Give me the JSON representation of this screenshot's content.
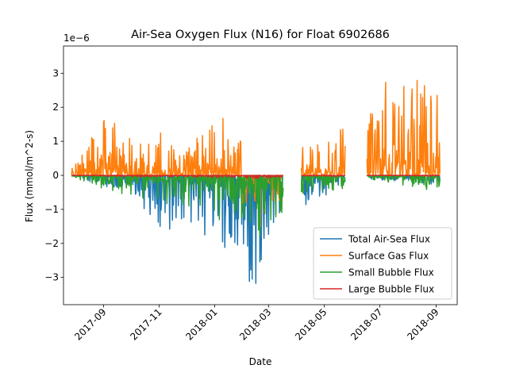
{
  "chart_data": {
    "type": "line",
    "title": "Air-Sea Oxygen Flux (N16) for Float 6902686",
    "xlabel": "Date",
    "ylabel": "Flux (mmol/m^2-s)",
    "y_offset_text": "1e−6",
    "ylim": [
      -3.8,
      3.8
    ],
    "xlim": [
      "2017-07-19",
      "2018-09-24"
    ],
    "y_ticks": [
      -3,
      -2,
      -1,
      0,
      1,
      2,
      3
    ],
    "y_tick_labels": [
      "−3",
      "−2",
      "−1",
      "0",
      "1",
      "2",
      "3"
    ],
    "x_ticks": [
      "2017-09-01",
      "2017-11-01",
      "2018-01-01",
      "2018-03-01",
      "2018-05-01",
      "2018-07-01",
      "2018-09-01"
    ],
    "x_tick_labels": [
      "2017-09",
      "2017-11",
      "2018-01",
      "2018-03",
      "2018-05",
      "2018-07",
      "2018-09"
    ],
    "grid": false,
    "legend_position": "lower-right",
    "segments": [
      {
        "start": "2017-07-28",
        "end": "2018-03-17"
      },
      {
        "start": "2018-04-06",
        "end": "2018-05-24"
      },
      {
        "start": "2018-06-17",
        "end": "2018-09-05"
      }
    ],
    "series": [
      {
        "name": "Total Air-Sea Flux",
        "color": "#1f77b4",
        "envelope": {
          "x": [
            "2017-07-28",
            "2017-09-01",
            "2017-10-01",
            "2017-11-01",
            "2017-12-01",
            "2018-01-01",
            "2018-02-01",
            "2018-02-20",
            "2018-03-17",
            "2018-04-06",
            "2018-05-24",
            "2018-06-17",
            "2018-09-05"
          ],
          "min": [
            -0.05,
            -0.3,
            -0.6,
            -1.6,
            -1.8,
            -1.9,
            -2.9,
            -3.5,
            -1.2,
            -1.0,
            -0.3,
            -0.1,
            -0.3
          ],
          "max": [
            0.05,
            0.0,
            0.0,
            0.0,
            0.0,
            0.0,
            0.0,
            0.0,
            0.0,
            0.0,
            0.0,
            0.0,
            0.0
          ]
        }
      },
      {
        "name": "Surface Gas Flux",
        "color": "#ff7f0e",
        "envelope": {
          "x": [
            "2017-07-28",
            "2017-09-01",
            "2017-10-01",
            "2017-11-01",
            "2017-12-01",
            "2018-01-01",
            "2018-02-01",
            "2018-02-20",
            "2018-03-17",
            "2018-04-06",
            "2018-05-24",
            "2018-06-17",
            "2018-09-05"
          ],
          "min": [
            0.0,
            0.0,
            0.0,
            -0.3,
            -0.6,
            -0.3,
            -1.2,
            -2.0,
            -0.7,
            -0.4,
            0.0,
            0.2,
            0.2
          ],
          "max": [
            0.5,
            1.8,
            1.2,
            1.3,
            0.8,
            2.0,
            1.1,
            0.8,
            0.3,
            0.9,
            1.5,
            2.5,
            3.5
          ]
        }
      },
      {
        "name": "Small Bubble Flux",
        "color": "#2ca02c",
        "envelope": {
          "x": [
            "2017-07-28",
            "2017-09-01",
            "2017-10-01",
            "2017-11-01",
            "2017-12-01",
            "2018-01-01",
            "2018-02-01",
            "2018-02-20",
            "2018-03-17",
            "2018-04-06",
            "2018-05-24",
            "2018-06-17",
            "2018-09-05"
          ],
          "min": [
            -0.05,
            -0.4,
            -0.7,
            -0.8,
            -1.0,
            -1.3,
            -1.7,
            -1.9,
            -1.1,
            -0.6,
            -0.4,
            -0.1,
            -0.5
          ],
          "max": [
            0.0,
            0.0,
            0.0,
            0.0,
            0.0,
            0.0,
            0.0,
            0.0,
            0.0,
            0.0,
            0.0,
            0.0,
            0.0
          ]
        }
      },
      {
        "name": "Large Bubble Flux",
        "color": "#d62728",
        "envelope": {
          "x": [
            "2017-07-28",
            "2017-09-01",
            "2017-10-01",
            "2017-11-01",
            "2017-12-01",
            "2018-01-01",
            "2018-02-01",
            "2018-02-20",
            "2018-03-17",
            "2018-04-06",
            "2018-05-24",
            "2018-06-17",
            "2018-09-05"
          ],
          "min": [
            0.0,
            -0.03,
            -0.05,
            -0.05,
            -0.06,
            -0.08,
            -0.09,
            -0.1,
            -0.05,
            -0.03,
            -0.03,
            -0.01,
            -0.03
          ],
          "max": [
            0.0,
            0.0,
            0.0,
            0.0,
            0.0,
            0.0,
            0.0,
            0.0,
            0.0,
            0.0,
            0.0,
            0.0,
            0.0
          ]
        }
      }
    ]
  }
}
